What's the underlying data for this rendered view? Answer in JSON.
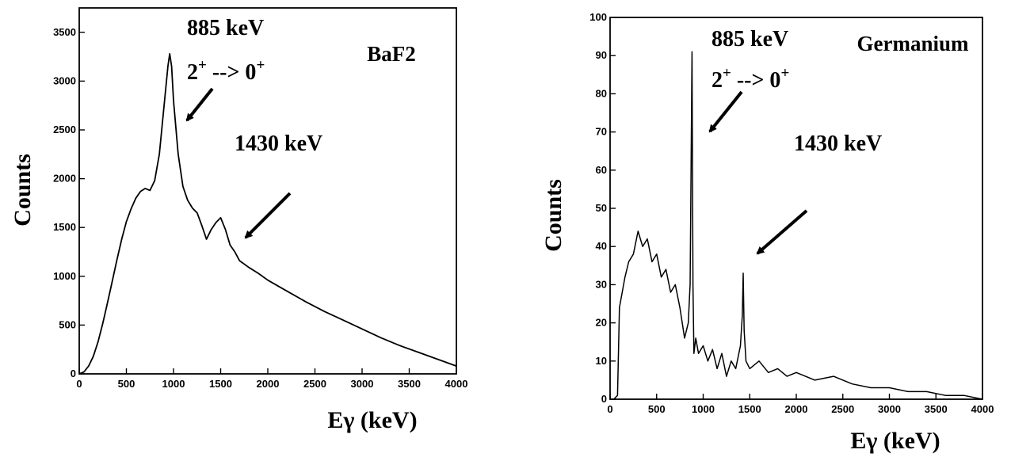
{
  "chart_data": [
    {
      "type": "line",
      "xlabel": "Eγ (keV)",
      "ylabel": "Counts",
      "legend_label": "BaF2",
      "xlim": [
        0,
        4000
      ],
      "ylim": [
        0,
        3750
      ],
      "x_ticks": [
        0,
        500,
        1000,
        1500,
        2000,
        2500,
        3000,
        3500,
        4000
      ],
      "y_ticks": [
        0,
        500,
        1000,
        1500,
        2000,
        2500,
        3000,
        3500
      ],
      "annotations": [
        {
          "line1": "885 keV",
          "line2_main": "2",
          "line2_sup1": "+",
          "line2_mid": " --> 0",
          "line2_sup2": "+",
          "points_to_x": 960
        },
        {
          "line1": "1430 keV",
          "points_to_x": 1500
        }
      ],
      "series": [
        {
          "x": [
            0,
            50,
            100,
            150,
            200,
            250,
            300,
            350,
            400,
            450,
            500,
            550,
            600,
            650,
            700,
            750,
            800,
            850,
            900,
            940,
            960,
            980,
            1000,
            1050,
            1100,
            1150,
            1200,
            1250,
            1300,
            1350,
            1400,
            1450,
            1500,
            1550,
            1600,
            1650,
            1700,
            1800,
            1900,
            2000,
            2200,
            2400,
            2600,
            2800,
            3000,
            3200,
            3400,
            3600,
            3800,
            4000
          ],
          "y": [
            0,
            20,
            80,
            180,
            330,
            520,
            730,
            950,
            1170,
            1380,
            1560,
            1690,
            1800,
            1870,
            1900,
            1880,
            1980,
            2250,
            2750,
            3150,
            3280,
            3150,
            2800,
            2250,
            1920,
            1780,
            1700,
            1650,
            1520,
            1380,
            1480,
            1550,
            1600,
            1480,
            1320,
            1250,
            1160,
            1090,
            1030,
            960,
            850,
            740,
            640,
            550,
            460,
            370,
            290,
            220,
            150,
            80
          ]
        }
      ]
    },
    {
      "type": "line",
      "xlabel": "Eγ (keV)",
      "ylabel": "Counts",
      "legend_label": "Germanium",
      "xlim": [
        0,
        4000
      ],
      "ylim": [
        0,
        100
      ],
      "x_ticks": [
        0,
        500,
        1000,
        1500,
        2000,
        2500,
        3000,
        3500,
        4000
      ],
      "y_ticks": [
        0,
        10,
        20,
        30,
        40,
        50,
        60,
        70,
        80,
        90,
        100
      ],
      "annotations": [
        {
          "line1": "885 keV",
          "line2_main": "2",
          "line2_sup1": "+",
          "line2_mid": " --> 0",
          "line2_sup2": "+",
          "points_to_x": 880
        },
        {
          "line1": "1430 keV",
          "points_to_x": 1430
        }
      ],
      "series": [
        {
          "x": [
            0,
            40,
            80,
            100,
            130,
            160,
            200,
            250,
            300,
            350,
            400,
            450,
            500,
            550,
            600,
            650,
            700,
            750,
            800,
            840,
            860,
            870,
            880,
            890,
            900,
            920,
            950,
            1000,
            1050,
            1100,
            1150,
            1200,
            1250,
            1300,
            1350,
            1400,
            1420,
            1430,
            1440,
            1460,
            1500,
            1600,
            1700,
            1800,
            1900,
            2000,
            2200,
            2400,
            2600,
            2800,
            3000,
            3200,
            3400,
            3600,
            3800,
            4000
          ],
          "y": [
            0,
            0,
            1,
            24,
            28,
            32,
            36,
            38,
            44,
            40,
            42,
            36,
            38,
            32,
            34,
            28,
            30,
            24,
            16,
            20,
            30,
            60,
            91,
            30,
            12,
            16,
            12,
            14,
            10,
            13,
            8,
            12,
            6,
            10,
            8,
            14,
            22,
            33,
            18,
            10,
            8,
            10,
            7,
            8,
            6,
            7,
            5,
            6,
            4,
            3,
            3,
            2,
            2,
            1,
            1,
            0
          ]
        }
      ]
    }
  ]
}
